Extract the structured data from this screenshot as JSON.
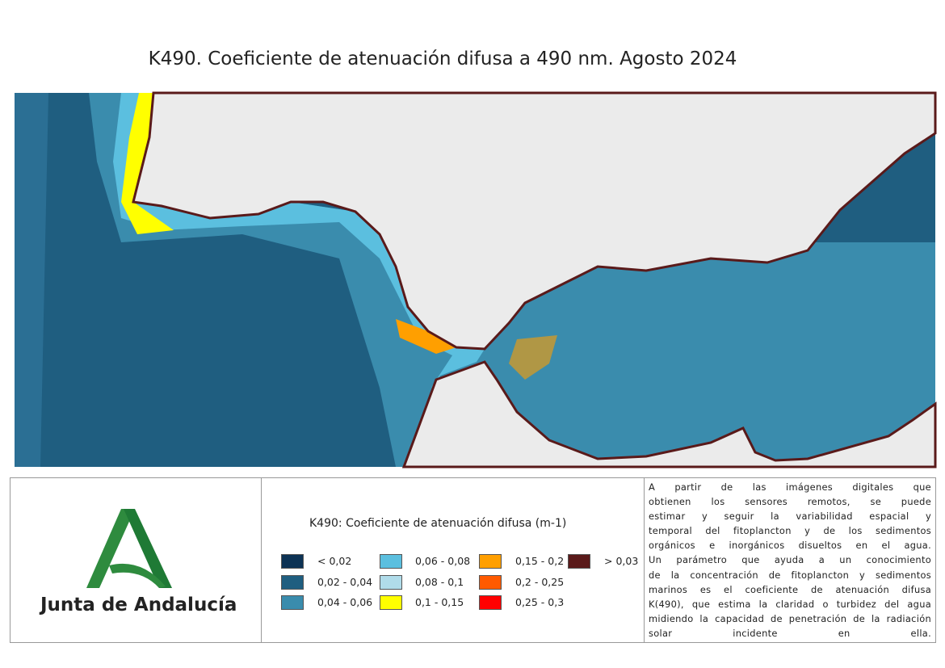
{
  "title": "K490. Coeficiente de atenuación difusa a 490 nm. Agosto 2024",
  "logo": {
    "text": "Junta de Andalucía"
  },
  "legend": {
    "title": "K490: Coeficiente de atenuación difusa (m-1)",
    "items": [
      {
        "label": "< 0,02",
        "color": "#0d3355"
      },
      {
        "label": "0,02 - 0,04",
        "color": "#1f5e80"
      },
      {
        "label": "0,04 - 0,06",
        "color": "#3a8cad"
      },
      {
        "label": "0,06 - 0,08",
        "color": "#5bbfdf"
      },
      {
        "label": "0,08 - 0,1",
        "color": "#b0dcea"
      },
      {
        "label": "0,1 - 0,15",
        "color": "#ffff00"
      },
      {
        "label": "0,15 - 0,2",
        "color": "#ff9f00"
      },
      {
        "label": "0,2 - 0,25",
        "color": "#ff5a00"
      },
      {
        "label": "0,25 - 0,3",
        "color": "#ff0000"
      },
      {
        "label": "> 0,03",
        "color": "#5a1a1a"
      }
    ]
  },
  "description": {
    "lines": [
      "A partir de las imágenes digitales que",
      "obtienen los sensores remotos, se puede",
      "estimar y seguir la variabilidad espacial y",
      "temporal del fitoplancton y de los sedimentos",
      "orgánicos e inorgánicos disueltos en el agua.",
      "Un parámetro que ayuda a un conocimiento",
      "de la concentración de fitoplancton y sedimentos",
      "marinos es el coeficiente de atenuación difusa",
      "K(490), que estima la claridad o turbidez del agua",
      "midiendo la capacidad de penetración de la radiación",
      "solar incidente en ella."
    ]
  }
}
